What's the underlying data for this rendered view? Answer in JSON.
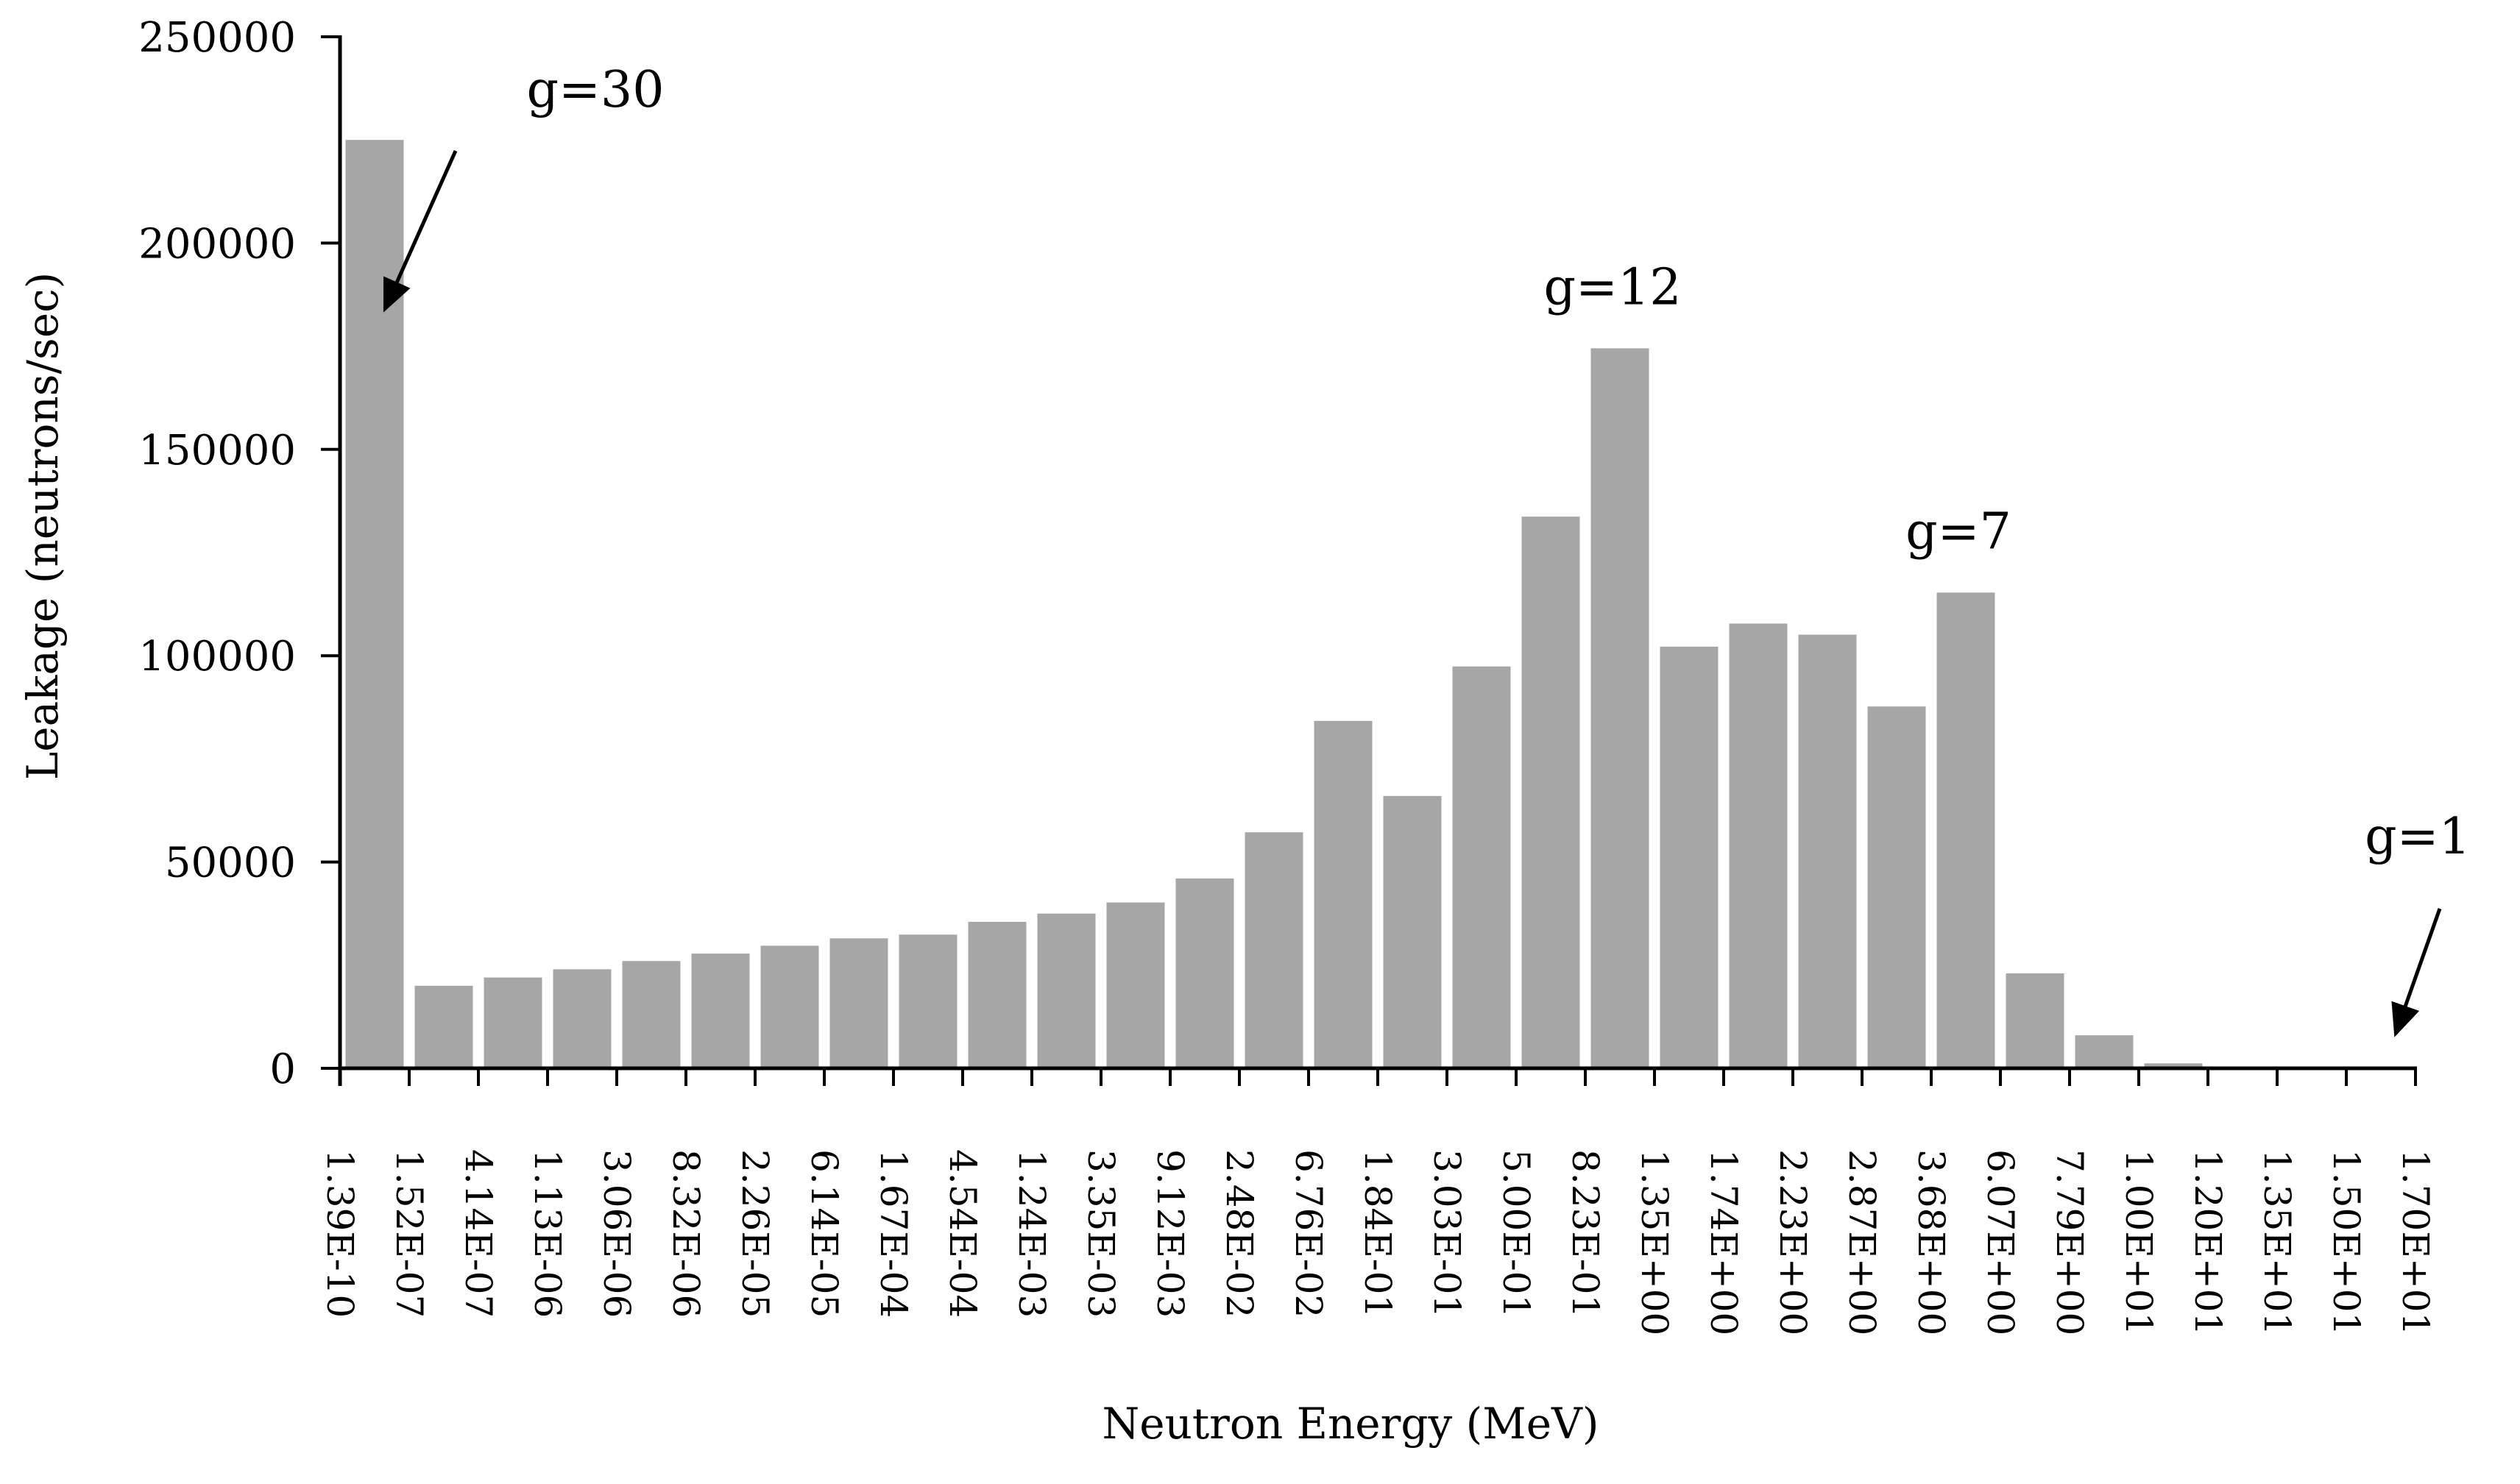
{
  "chart_data": {
    "type": "bar",
    "title": "",
    "xlabel": "Neutron Energy (MeV)",
    "ylabel": "Leakage (neutrons/sec)",
    "ylim": [
      0,
      250000
    ],
    "yticks": [
      0,
      50000,
      100000,
      150000,
      200000,
      250000
    ],
    "ytick_labels": [
      "0",
      "50000",
      "100000",
      "150000",
      "200000",
      "250000"
    ],
    "xtick_labels": [
      "1.39E-10",
      "1.52E-07",
      "4.14E-07",
      "1.13E-06",
      "3.06E-06",
      "8.32E-06",
      "2.26E-05",
      "6.14E-05",
      "1.67E-04",
      "4.54E-04",
      "1.24E-03",
      "3.35E-03",
      "9.12E-03",
      "2.48E-02",
      "6.76E-02",
      "1.84E-01",
      "3.03E-01",
      "5.00E-01",
      "8.23E-01",
      "1.35E+00",
      "1.74E+00",
      "2.23E+00",
      "2.87E+00",
      "3.68E+00",
      "6.07E+00",
      "7.79E+00",
      "1.00E+01",
      "1.20E+01",
      "1.35E+01",
      "1.50E+01",
      "1.70E+01"
    ],
    "bar_color": "#a6a6a6",
    "values": [
      225000,
      20000,
      22000,
      24000,
      26000,
      27800,
      29700,
      31500,
      32400,
      35500,
      37500,
      40200,
      46000,
      57200,
      84200,
      66000,
      97400,
      133700,
      174500,
      102200,
      107800,
      105100,
      87700,
      115300,
      23000,
      8000,
      1200,
      0,
      0,
      0
    ],
    "annotations": [
      {
        "text": "g=30",
        "group": 30
      },
      {
        "text": "g=12",
        "group": 12
      },
      {
        "text": "g=7",
        "group": 7
      },
      {
        "text": "g=1",
        "group": 1
      }
    ],
    "grid": false,
    "legend": "none"
  }
}
